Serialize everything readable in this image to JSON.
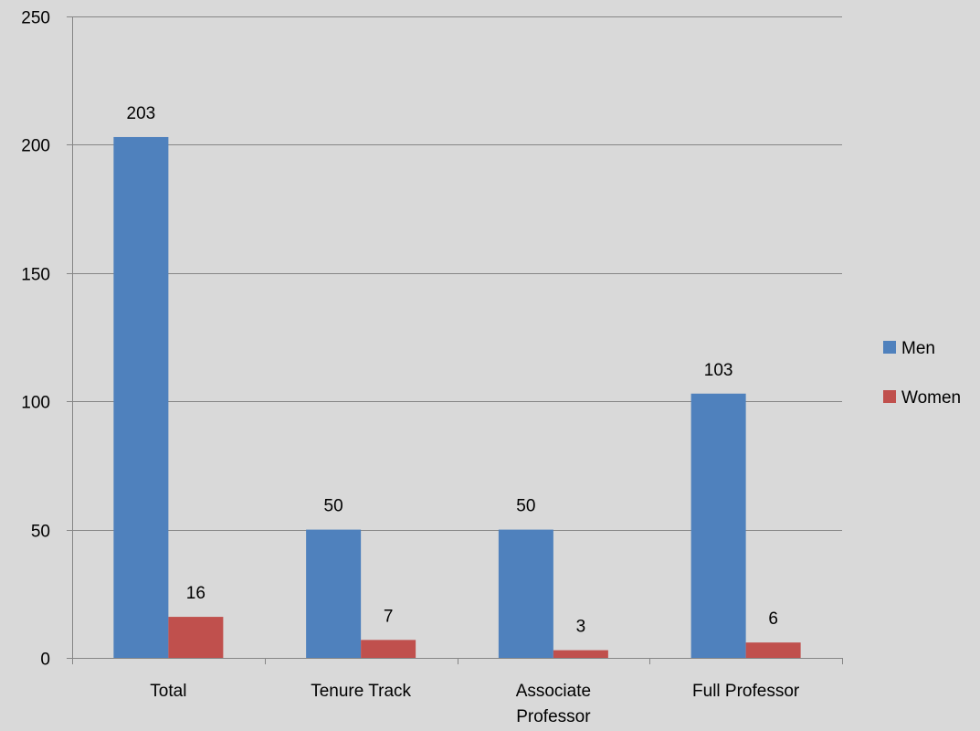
{
  "chart_data": {
    "type": "bar",
    "title": "",
    "xlabel": "",
    "ylabel": "",
    "ylim": [
      0,
      250
    ],
    "yticks": [
      0,
      50,
      100,
      150,
      200,
      250
    ],
    "grid": true,
    "legend_position": "right",
    "categories": [
      [
        "Total"
      ],
      [
        "Tenure Track"
      ],
      [
        "Associate",
        "Professor"
      ],
      [
        "Full Professor"
      ]
    ],
    "series": [
      {
        "name": "Men",
        "color": "#4f81bd",
        "values": [
          203,
          50,
          50,
          103
        ]
      },
      {
        "name": "Women",
        "color": "#c0504d",
        "values": [
          16,
          7,
          3,
          6
        ]
      }
    ]
  }
}
